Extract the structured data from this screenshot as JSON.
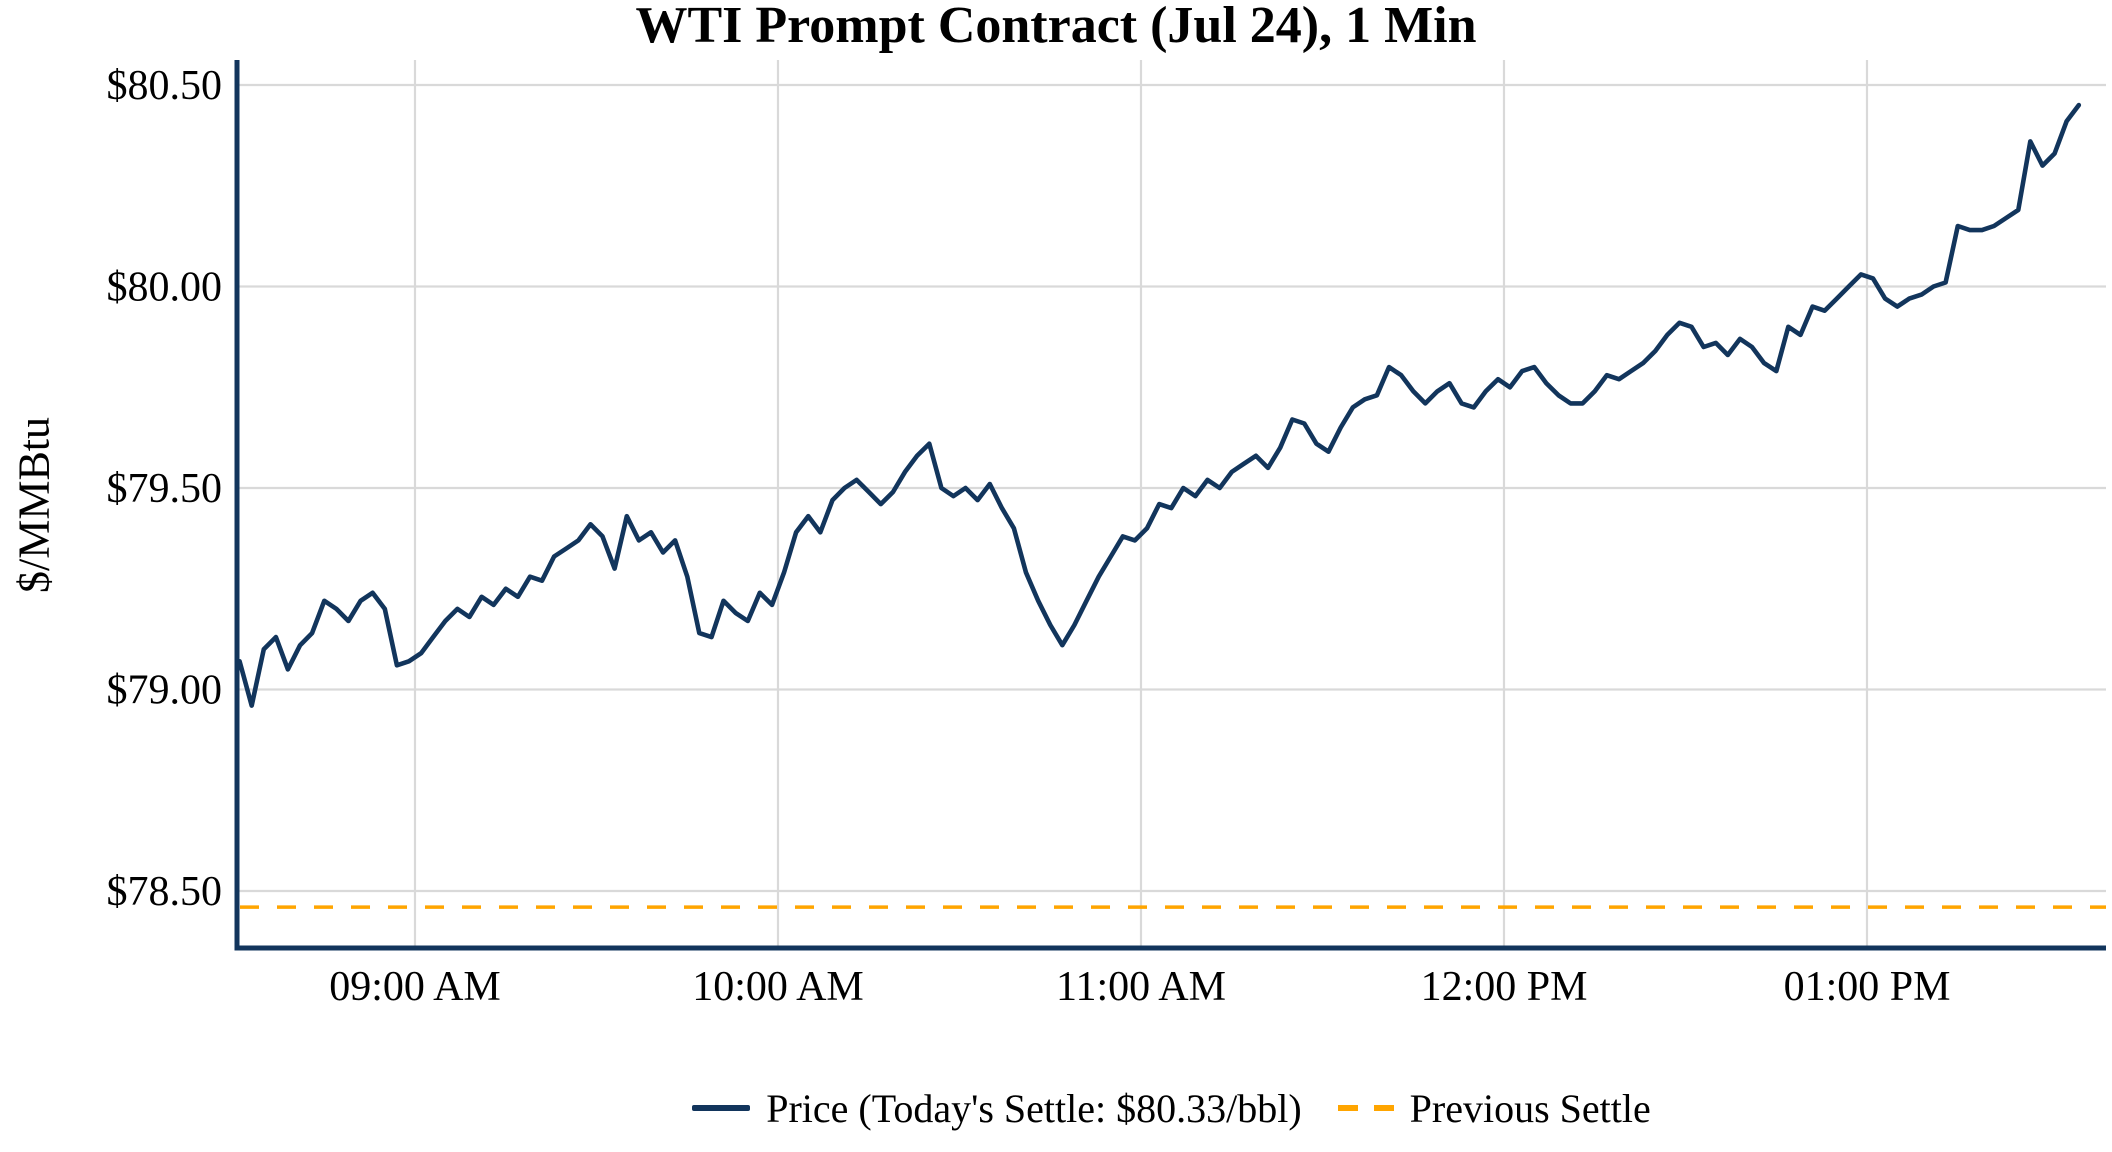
{
  "title": "WTI Prompt Contract (Jul 24), 1 Min",
  "y_axis": {
    "label": "$/MMBtu",
    "ticks": [
      {
        "label": "$80.50",
        "value": 80.5
      },
      {
        "label": "$80.00",
        "value": 80.0
      },
      {
        "label": "$79.50",
        "value": 79.5
      },
      {
        "label": "$79.00",
        "value": 79.0
      },
      {
        "label": "$78.50",
        "value": 78.5
      }
    ]
  },
  "x_axis": {
    "ticks": [
      {
        "label": "09:00 AM",
        "minutes": 540
      },
      {
        "label": "10:00 AM",
        "minutes": 600
      },
      {
        "label": "11:00 AM",
        "minutes": 660
      },
      {
        "label": "12:00 PM",
        "minutes": 720
      },
      {
        "label": "01:00 PM",
        "minutes": 780
      }
    ]
  },
  "legend": {
    "price_label": "Price (Today's Settle: $80.33/bbl)",
    "previous_settle_label": "Previous Settle"
  },
  "colors": {
    "price": "#12355c",
    "previous_settle": "#ffa500",
    "grid": "#d9d9d9",
    "background": "#ffffff",
    "text": "#000000"
  },
  "chart_data": {
    "type": "line",
    "title": "WTI Prompt Contract (Jul 24), 1 Min",
    "xlabel": "",
    "ylabel": "$/MMBtu",
    "grid": true,
    "legend_position": "bottom",
    "ylim": [
      78.36,
      80.56
    ],
    "x_range": [
      "08:31",
      "13:35"
    ],
    "x_tick_labels": [
      "09:00 AM",
      "10:00 AM",
      "11:00 AM",
      "12:00 PM",
      "01:00 PM"
    ],
    "y_tick_labels": [
      "$80.50",
      "$80.00",
      "$79.50",
      "$79.00",
      "$78.50"
    ],
    "todays_settle": 80.33,
    "previous_settle": 78.46,
    "series": [
      {
        "name": "Price (Today's Settle: $80.33/bbl)",
        "style": "solid",
        "color": "#12355c",
        "x_start": "08:31",
        "x_interval_minutes": 2,
        "values": [
          79.07,
          78.96,
          79.1,
          79.13,
          79.05,
          79.11,
          79.14,
          79.22,
          79.2,
          79.17,
          79.22,
          79.24,
          79.2,
          79.06,
          79.07,
          79.09,
          79.13,
          79.17,
          79.2,
          79.18,
          79.23,
          79.21,
          79.25,
          79.23,
          79.28,
          79.27,
          79.33,
          79.35,
          79.37,
          79.41,
          79.38,
          79.3,
          79.43,
          79.37,
          79.39,
          79.34,
          79.37,
          79.28,
          79.14,
          79.13,
          79.22,
          79.19,
          79.17,
          79.24,
          79.21,
          79.29,
          79.39,
          79.43,
          79.39,
          79.47,
          79.5,
          79.52,
          79.49,
          79.46,
          79.49,
          79.54,
          79.58,
          79.61,
          79.5,
          79.48,
          79.5,
          79.47,
          79.51,
          79.45,
          79.4,
          79.29,
          79.22,
          79.16,
          79.11,
          79.16,
          79.22,
          79.28,
          79.33,
          79.38,
          79.37,
          79.4,
          79.46,
          79.45,
          79.5,
          79.48,
          79.52,
          79.5,
          79.54,
          79.56,
          79.58,
          79.55,
          79.6,
          79.67,
          79.66,
          79.61,
          79.59,
          79.65,
          79.7,
          79.72,
          79.73,
          79.8,
          79.78,
          79.74,
          79.71,
          79.74,
          79.76,
          79.71,
          79.7,
          79.74,
          79.77,
          79.75,
          79.79,
          79.8,
          79.76,
          79.73,
          79.71,
          79.71,
          79.74,
          79.78,
          79.77,
          79.79,
          79.81,
          79.84,
          79.88,
          79.91,
          79.9,
          79.85,
          79.86,
          79.83,
          79.87,
          79.85,
          79.81,
          79.79,
          79.9,
          79.88,
          79.95,
          79.94,
          79.97,
          80.0,
          80.03,
          80.02,
          79.97,
          79.95,
          79.97,
          79.98,
          80.0,
          80.01,
          80.15,
          80.14,
          80.14,
          80.15,
          80.17,
          80.19,
          80.36,
          80.3,
          80.33,
          80.41,
          80.45
        ]
      },
      {
        "name": "Previous Settle",
        "style": "dashed",
        "color": "#ffa500",
        "value": 78.46
      }
    ]
  }
}
